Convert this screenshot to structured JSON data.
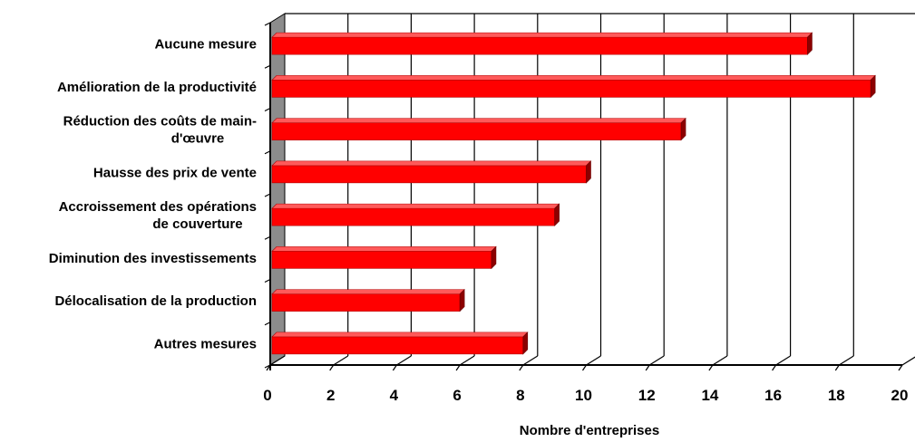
{
  "chart_data": {
    "type": "bar",
    "orientation": "horizontal",
    "style": "3d",
    "categories": [
      "Aucune mesure",
      "Amélioration de la productivité",
      "Réduction des coûts de main-d'œuvre",
      "Hausse des prix de vente",
      "Accroissement des opérations de couverture",
      "Diminution des investissements",
      "Délocalisation de la production",
      "Autres mesures"
    ],
    "category_lines": [
      [
        "Aucune mesure"
      ],
      [
        "Amélioration de la productivité"
      ],
      [
        "Réduction des coûts de main-",
        "d'œuvre"
      ],
      [
        "Hausse des prix de vente"
      ],
      [
        "Accroissement des opérations",
        "de couverture"
      ],
      [
        "Diminution des investissements"
      ],
      [
        "Délocalisation de la production"
      ],
      [
        "Autres mesures"
      ]
    ],
    "values": [
      17,
      19,
      13,
      10,
      9,
      7,
      6,
      8
    ],
    "xlabel": "Nombre d'entreprises",
    "ylabel": "",
    "xlim": [
      0,
      20
    ],
    "xticks": [
      "0",
      "2",
      "4",
      "6",
      "8",
      "10",
      "12",
      "14",
      "16",
      "18",
      "20"
    ],
    "grid": "vertical",
    "legend": "none",
    "colors": {
      "bar_front": "#ff0000",
      "bar_top": "#ff5a5a",
      "bar_side": "#8c0000",
      "wall": "#8c8c8c",
      "gridline": "#000000"
    }
  }
}
